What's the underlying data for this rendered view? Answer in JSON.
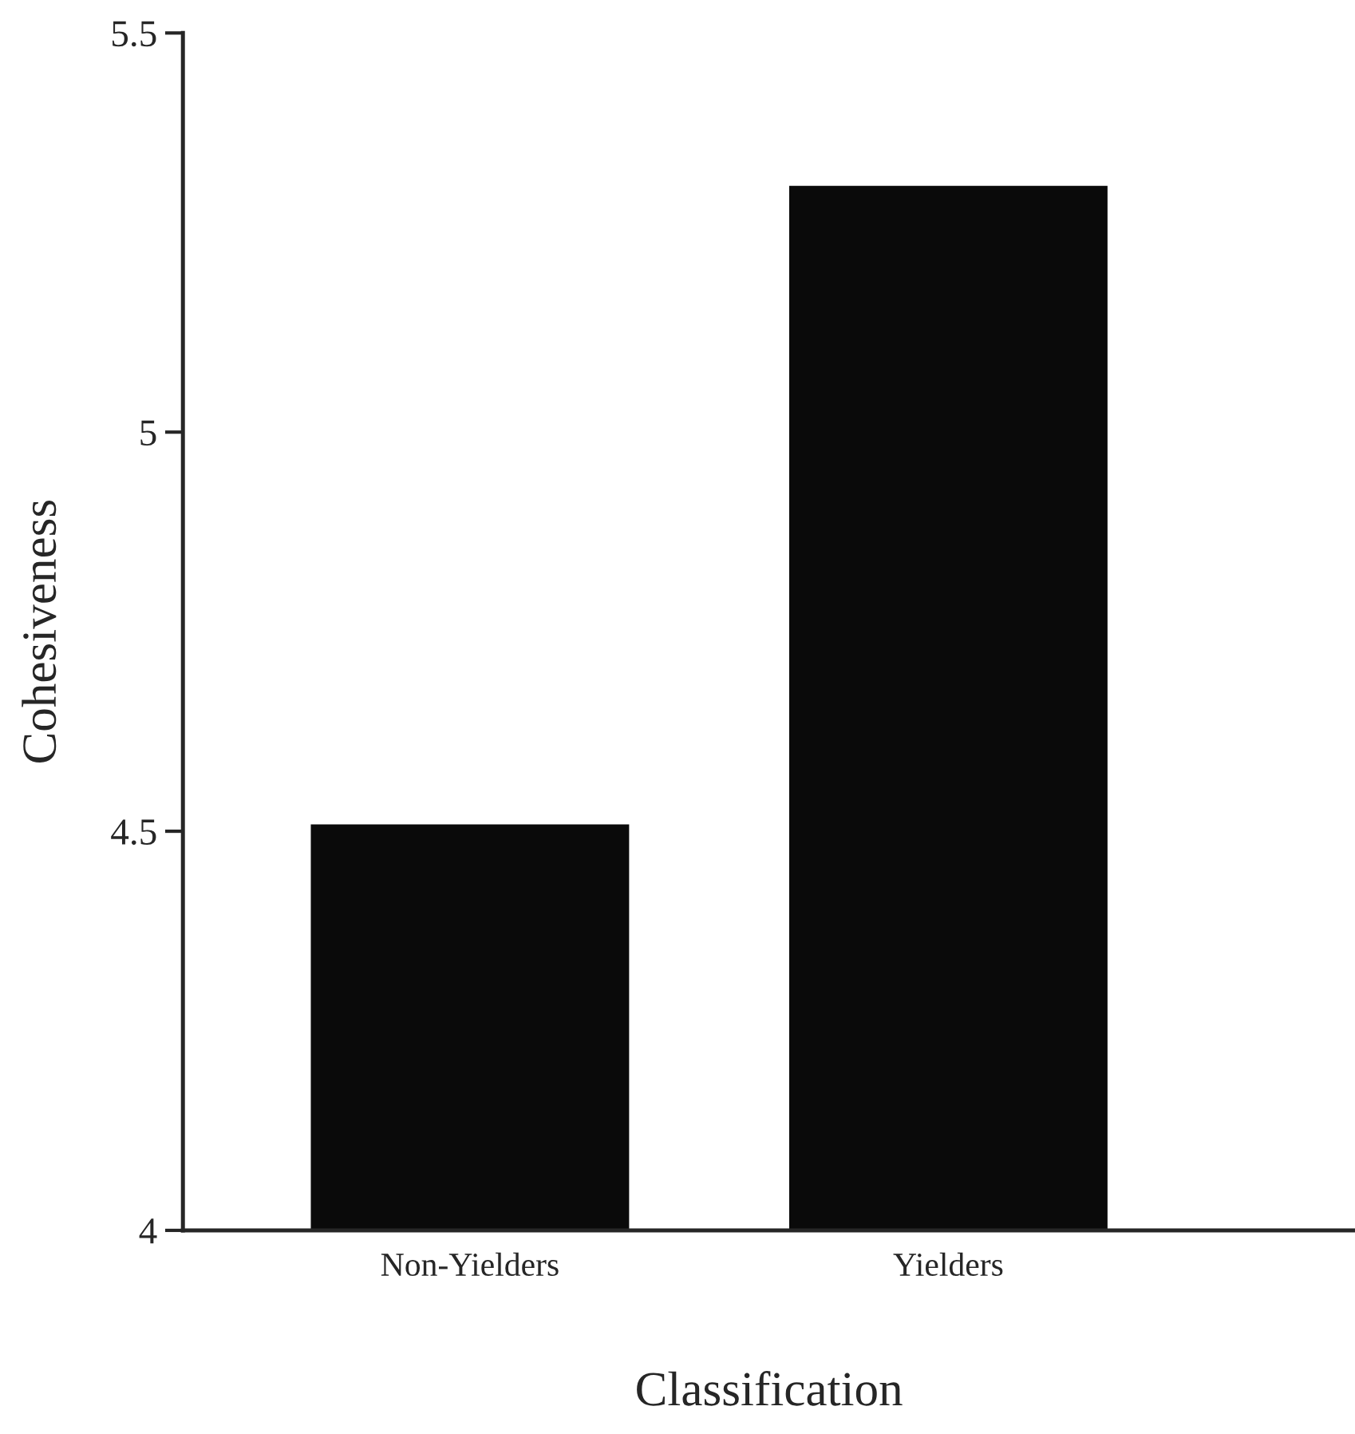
{
  "chart_data": {
    "type": "bar",
    "xlabel": "Classification",
    "ylabel": "Cohesiveness",
    "categories": [
      "Non-Yielders",
      "Yielders"
    ],
    "values": [
      4.51,
      5.31
    ],
    "color": "#0a0a0a",
    "ylim": [
      4,
      5.5
    ],
    "yticks": [
      4,
      {
        "value": 4.5,
        "label": "4.5"
      },
      5,
      {
        "value": 5.5,
        "label": "5.5"
      }
    ],
    "grid": false,
    "legend": false
  }
}
